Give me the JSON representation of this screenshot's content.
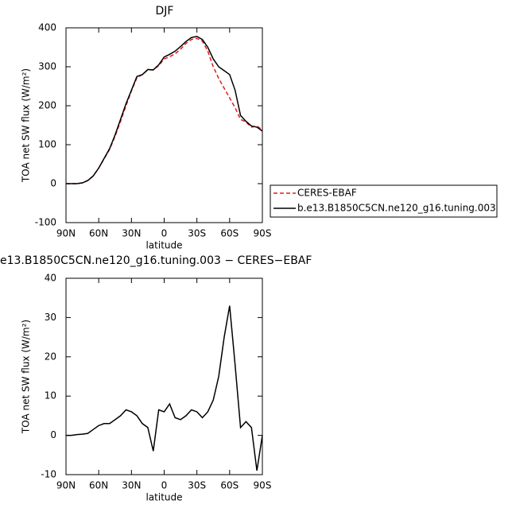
{
  "chart_data": [
    {
      "type": "line",
      "title": "DJF",
      "xlabel": "latitude",
      "ylabel": "TOA net SW flux (W/m²)",
      "x": [
        90,
        85,
        80,
        75,
        70,
        65,
        60,
        55,
        50,
        45,
        40,
        35,
        30,
        25,
        20,
        15,
        10,
        5,
        0,
        -5,
        -10,
        -15,
        -20,
        -25,
        -30,
        -35,
        -40,
        -45,
        -50,
        -55,
        -60,
        -65,
        -70,
        -75,
        -80,
        -85,
        -90
      ],
      "xlim": [
        90,
        -90
      ],
      "xticks": [
        {
          "value": 90,
          "label": "90N"
        },
        {
          "value": 60,
          "label": "60N"
        },
        {
          "value": 30,
          "label": "30N"
        },
        0,
        {
          "value": -30,
          "label": "30S"
        },
        {
          "value": -60,
          "label": "60S"
        },
        {
          "value": -90,
          "label": "90S"
        }
      ],
      "ylim": [
        -100,
        400
      ],
      "yticks": [
        -100,
        0,
        100,
        200,
        300,
        400
      ],
      "legend": "right",
      "series": [
        {
          "name": "CERES-EBAF",
          "color": "#e41a1c",
          "style": "dashed",
          "values": [
            0,
            0,
            0,
            2,
            8,
            20,
            40,
            64,
            88,
            122,
            160,
            200,
            238,
            272,
            280,
            292,
            292,
            303,
            320,
            326,
            333,
            345,
            360,
            370,
            373,
            366,
            340,
            300,
            270,
            245,
            220,
            195,
            165,
            158,
            145,
            148,
            138
          ]
        },
        {
          "name": "b.e13.B1850C5CN.ne120_g16.tuning.003",
          "color": "#000000",
          "style": "solid",
          "values": [
            0,
            0,
            0,
            2,
            8,
            20,
            40,
            65,
            90,
            125,
            165,
            205,
            240,
            275,
            280,
            293,
            292,
            305,
            325,
            332,
            340,
            352,
            365,
            375,
            378,
            370,
            350,
            320,
            300,
            290,
            280,
            240,
            175,
            160,
            148,
            145,
            135
          ]
        }
      ]
    },
    {
      "type": "line",
      "title": "e13.B1850C5CN.ne120_g16.tuning.003 − CERES−EBAF",
      "xlabel": "latitude",
      "ylabel": "TOA net SW flux (W/m²)",
      "x": [
        90,
        85,
        80,
        75,
        70,
        65,
        60,
        55,
        50,
        45,
        40,
        35,
        30,
        25,
        20,
        15,
        10,
        5,
        0,
        -5,
        -10,
        -15,
        -20,
        -25,
        -30,
        -35,
        -40,
        -45,
        -50,
        -55,
        -60,
        -65,
        -70,
        -75,
        -80,
        -85,
        -90
      ],
      "xlim": [
        90,
        -90
      ],
      "xticks": [
        {
          "value": 90,
          "label": "90N"
        },
        {
          "value": 60,
          "label": "60N"
        },
        {
          "value": 30,
          "label": "30N"
        },
        0,
        {
          "value": -30,
          "label": "30S"
        },
        {
          "value": -60,
          "label": "60S"
        },
        {
          "value": -90,
          "label": "90S"
        }
      ],
      "ylim": [
        -10,
        40
      ],
      "yticks": [
        -10,
        0,
        10,
        20,
        30,
        40
      ],
      "series": [
        {
          "color": "#000000",
          "style": "solid",
          "values": [
            0,
            0,
            0.2,
            0.3,
            0.5,
            1.5,
            2.5,
            3,
            3,
            4,
            5,
            6.5,
            6,
            5,
            3,
            2,
            -4,
            6.5,
            6,
            8,
            4.5,
            4,
            5,
            6.5,
            6,
            4.5,
            6,
            9,
            15,
            25,
            33,
            18,
            2,
            3.5,
            2,
            -9,
            0
          ]
        }
      ]
    }
  ]
}
